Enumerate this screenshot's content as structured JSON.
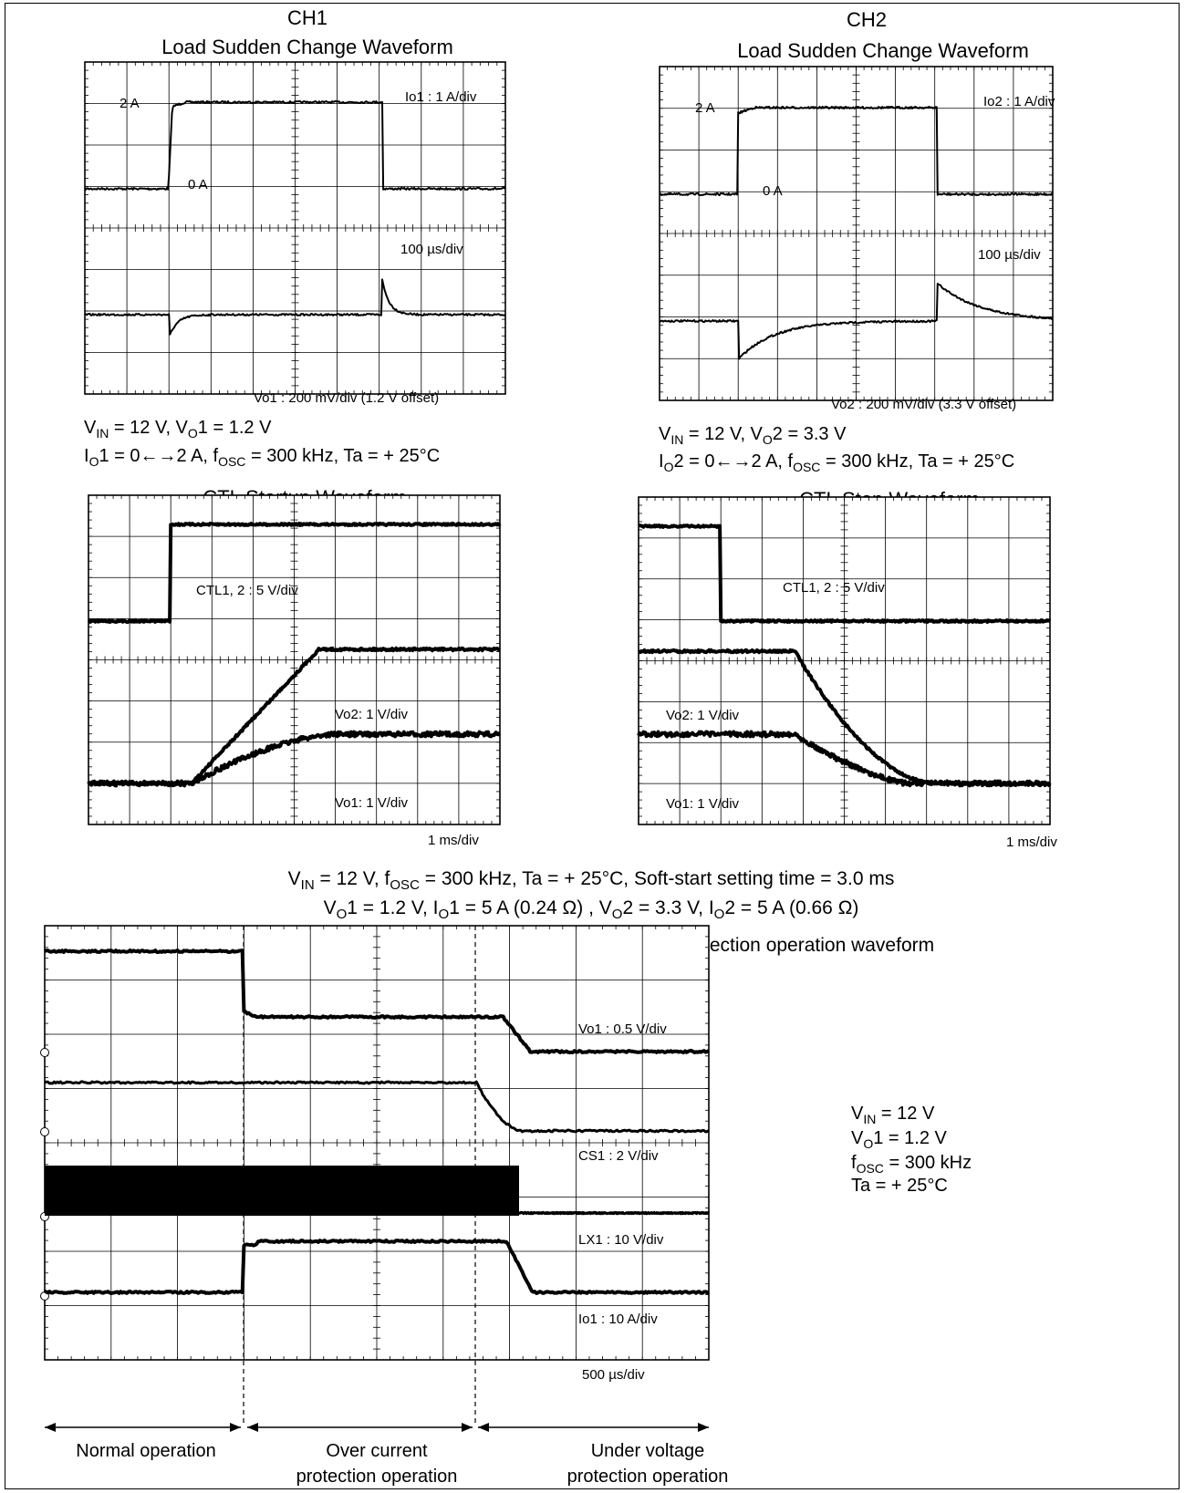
{
  "chart_data": [
    {
      "type": "line",
      "title": "CH1",
      "subtitle": "Load Sudden Change Waveform",
      "traces": [
        {
          "name": "Io1",
          "scale": "1 A/div",
          "levels": [
            "2 A",
            "0 A"
          ],
          "description": "0A -> 2A step, duration ~5 divisions"
        },
        {
          "name": "Vo1",
          "scale": "200 mV/div",
          "offset": "1.2 V offset",
          "description": "undershoot on load step up, overshoot on load step down"
        }
      ],
      "time_scale": "100 µs/div",
      "labels": {
        "ch1_label": "2 A",
        "zero_label": "0 A",
        "ch1_scale": "Io1 : 1 A/div",
        "time_scale": "100 µs/div",
        "ch2_scale": "Vo1 : 200 mV/div (1.2 V offset)"
      },
      "conditions": [
        "VIN = 12 V, VO1 = 1.2 V",
        "IO1 = 0←→2 A, fOSC = 300 kHz, Ta = + 25°C"
      ]
    },
    {
      "type": "line",
      "title": "CH2",
      "subtitle": "Load Sudden Change Waveform",
      "traces": [
        {
          "name": "Io2",
          "scale": "1 A/div",
          "levels": [
            "2 A",
            "0 A"
          ],
          "description": "0A -> 2A step"
        },
        {
          "name": "Vo2",
          "scale": "200 mV/div",
          "offset": "3.3 V offset",
          "description": "undershoot with slow recovery, overshoot at release"
        }
      ],
      "time_scale": "100 µs/div",
      "labels": {
        "ch1_label": "2 A",
        "zero_label": "0 A",
        "ch1_scale": "Io2 : 1 A/div",
        "time_scale": "100 µs/div",
        "ch2_scale": "Vo2 : 200 mV/div (3.3 V offset)"
      },
      "conditions": [
        "VIN = 12 V, VO2 = 3.3 V",
        "IO2 = 0←→2 A, fOSC = 300 kHz, Ta = + 25°C"
      ]
    },
    {
      "type": "line",
      "title": "CTL Startup Waveform",
      "traces": [
        {
          "name": "CTL1, 2",
          "scale": "5 V/div"
        },
        {
          "name": "Vo2",
          "scale": "1 V/div"
        },
        {
          "name": "Vo1",
          "scale": "1 V/div"
        }
      ],
      "time_scale": "1 ms/div",
      "labels": {
        "ctl": "CTL1, 2 : 5 V/div",
        "vo2": "Vo2: 1 V/div",
        "vo1": "Vo1: 1 V/div",
        "time": "1 ms/div"
      }
    },
    {
      "type": "line",
      "title": "CTL Stop Waveform",
      "traces": [
        {
          "name": "CTL1, 2",
          "scale": "5 V/div"
        },
        {
          "name": "Vo2",
          "scale": "1 V/div"
        },
        {
          "name": "Vo1",
          "scale": "1 V/div"
        }
      ],
      "time_scale": "1 ms/div",
      "labels": {
        "ctl": "CTL1, 2 : 5 V/div",
        "vo2": "Vo2: 1 V/div",
        "vo1": "Vo1: 1 V/div",
        "time": "1 ms/div"
      }
    },
    {
      "type": "line",
      "title": "Normal operation → Over current protection → Under voltage protection operation waveform",
      "traces": [
        {
          "name": "Vo1",
          "scale": "0.5 V/div"
        },
        {
          "name": "CS1",
          "scale": "2 V/div"
        },
        {
          "name": "LX1",
          "scale": "10 V/div"
        },
        {
          "name": "Io1",
          "scale": "10 A/div"
        }
      ],
      "time_scale": "500 µs/div",
      "labels": {
        "vo1": "Vo1 : 0.5 V/div",
        "cs1": "CS1 : 2 V/div",
        "lx1": "LX1 : 10 V/div",
        "io1": "Io1 : 10 A/div",
        "time": "500 µs/div"
      },
      "phases": [
        "Normal operation",
        "Over current protection operation",
        "Under voltage protection operation"
      ],
      "conditions": [
        "VIN = 12 V",
        "VO1 = 1.2 V",
        "fOSC = 300 kHz",
        "Ta = + 25°C"
      ]
    }
  ],
  "text": {
    "ch1_title": "CH1",
    "ch1_subtitle": "Load Sudden Change Waveform",
    "ch2_title": "CH2",
    "ch2_subtitle": "Load Sudden Change Waveform",
    "startup_title": "CTL Startup Waveform",
    "stop_title": "CTL Stop Waveform",
    "mid_cond_line1": "VIN = 12 V, fOSC = 300 kHz, Ta = + 25°C, Soft-start setting time = 3.0 ms",
    "mid_cond_line2": "VO1 = 1.2 V, IO1 = 5 A (0.24 Ω) , VO2 = 3.3 V, IO2 = 5 A (0.66 Ω)",
    "ocp_title": "Normal operation → Over current protection → Under voltage protection operation waveform",
    "phase_normal": "Normal operation",
    "phase_ocp_1": "Over current",
    "phase_ocp_2": "protection operation",
    "phase_uvp_1": "Under voltage",
    "phase_uvp_2": "protection operation"
  }
}
